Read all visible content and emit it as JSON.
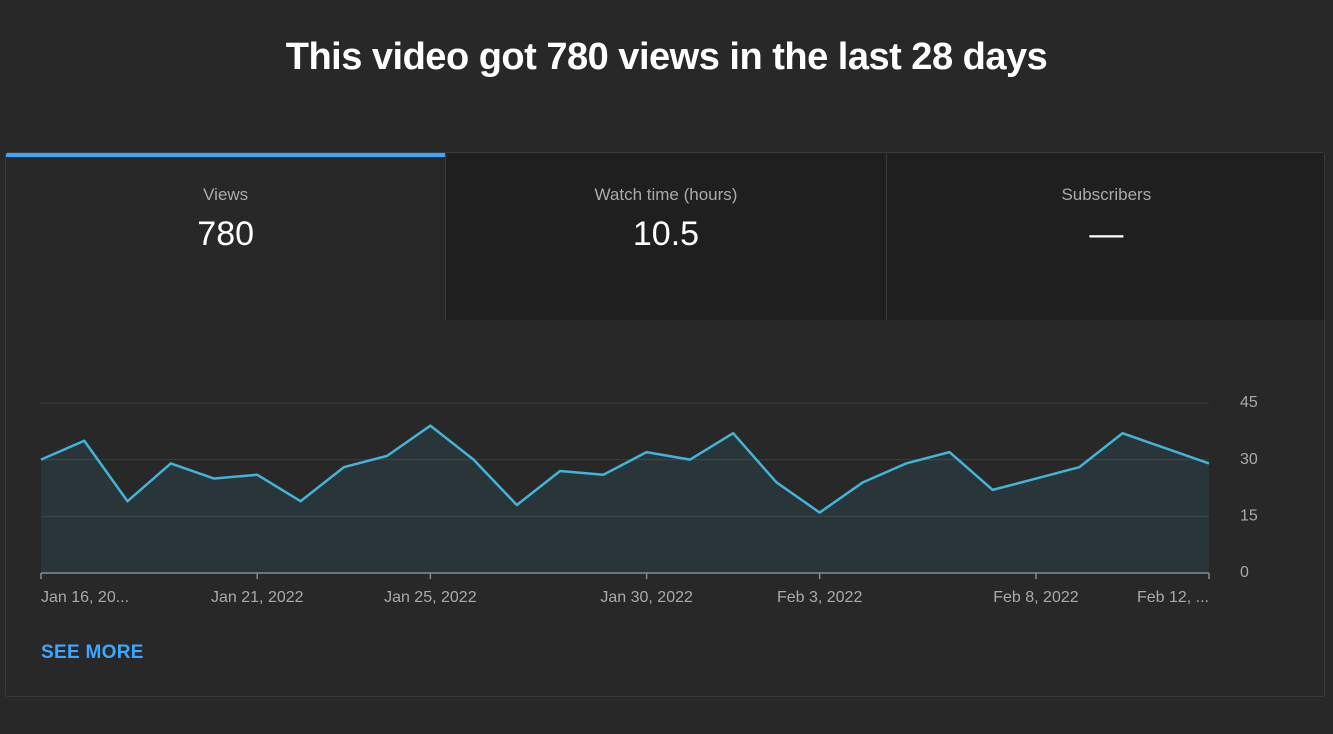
{
  "header": {
    "title": "This video got 780 views in the last 28 days"
  },
  "tabs": [
    {
      "label": "Views",
      "value": 780,
      "active": true
    },
    {
      "label": "Watch time (hours)",
      "value": 10.5,
      "active": false
    },
    {
      "label": "Subscribers",
      "value": "—",
      "active": false
    }
  ],
  "chart_data": {
    "type": "line",
    "x": [
      "2022-01-16",
      "2022-01-17",
      "2022-01-18",
      "2022-01-19",
      "2022-01-20",
      "2022-01-21",
      "2022-01-22",
      "2022-01-23",
      "2022-01-24",
      "2022-01-25",
      "2022-01-26",
      "2022-01-27",
      "2022-01-28",
      "2022-01-29",
      "2022-01-30",
      "2022-01-31",
      "2022-02-01",
      "2022-02-02",
      "2022-02-03",
      "2022-02-04",
      "2022-02-05",
      "2022-02-06",
      "2022-02-07",
      "2022-02-08",
      "2022-02-09",
      "2022-02-10",
      "2022-02-11",
      "2022-02-12"
    ],
    "values": [
      30,
      35,
      19,
      29,
      25,
      26,
      19,
      28,
      31,
      39,
      30,
      18,
      27,
      26,
      32,
      30,
      37,
      24,
      16,
      24,
      29,
      32,
      22,
      25,
      28,
      37,
      33,
      29
    ],
    "color": "#41b4d8",
    "xlim": [
      "2022-01-16",
      "2022-02-12"
    ],
    "xticks": [
      {
        "value": "2022-01-16",
        "label": "Jan 16, 20..."
      },
      {
        "value": "2022-01-21",
        "label": "Jan 21, 2022"
      },
      {
        "value": "2022-01-25",
        "label": "Jan 25, 2022"
      },
      {
        "value": "2022-01-30",
        "label": "Jan 30, 2022"
      },
      {
        "value": "2022-02-03",
        "label": "Feb 3, 2022"
      },
      {
        "value": "2022-02-08",
        "label": "Feb 8, 2022"
      },
      {
        "value": "2022-02-12",
        "label": "Feb 12, ..."
      }
    ],
    "ylim": [
      0,
      45
    ],
    "yticks": [
      0,
      15,
      30,
      45
    ],
    "grid": true
  },
  "link": {
    "label": "SEE MORE"
  }
}
